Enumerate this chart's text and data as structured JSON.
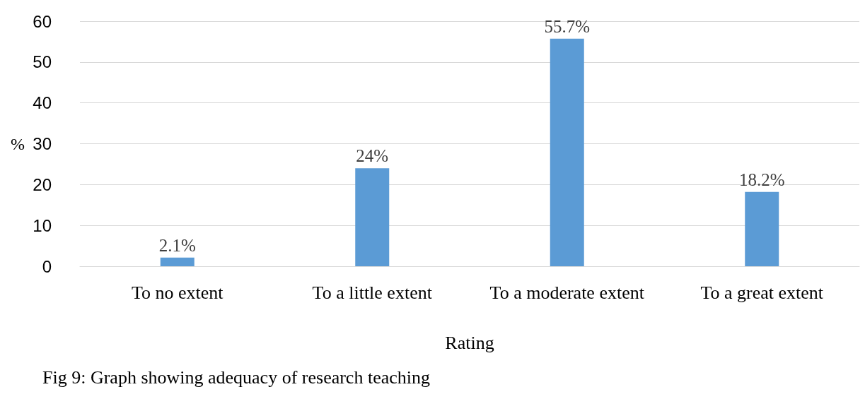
{
  "chart_data": {
    "type": "bar",
    "xlabel": "Rating",
    "ylabel": "%",
    "categories": [
      "To no extent",
      "To a little extent",
      "To a moderate extent",
      "To a great extent"
    ],
    "values": [
      2.1,
      24,
      55.7,
      18.2
    ],
    "value_labels": [
      "2.1%",
      "24%",
      "55.7%",
      "18.2%"
    ],
    "color": "#5b9bd5",
    "ylim": [
      0,
      60
    ],
    "yticks": [
      0,
      10,
      20,
      30,
      40,
      50,
      60
    ],
    "grid": "y",
    "annotations": [
      "Fig 9: Graph showing adequacy of research teaching"
    ]
  }
}
